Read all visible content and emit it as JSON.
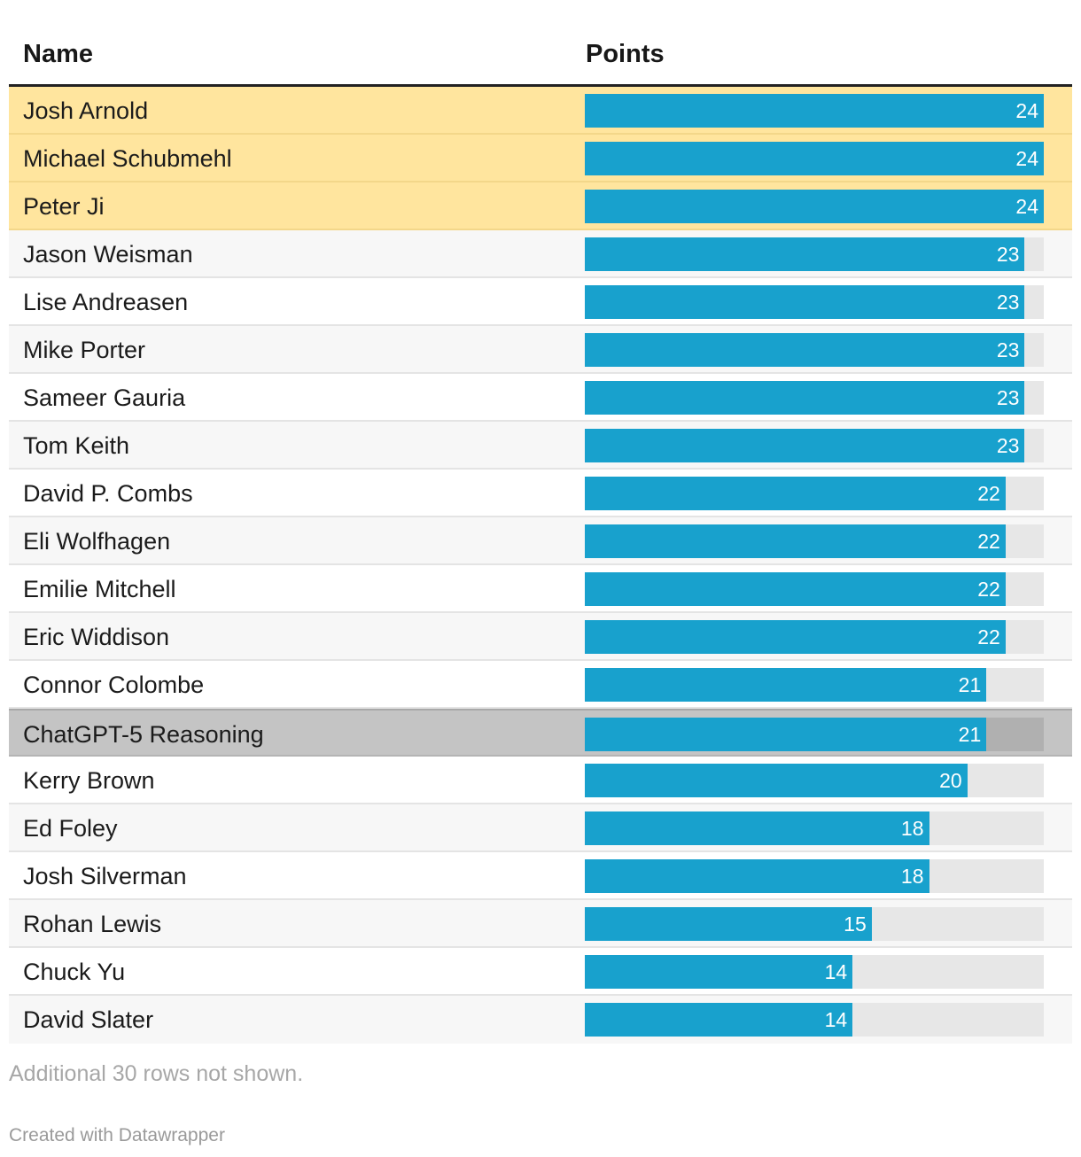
{
  "table": {
    "headers": {
      "name": "Name",
      "points": "Points"
    }
  },
  "chart_data": {
    "type": "bar",
    "orientation": "horizontal",
    "xlim": [
      0,
      24
    ],
    "categories": [
      "Josh Arnold",
      "Michael Schubmehl",
      "Peter Ji",
      "Jason Weisman",
      "Lise Andreasen",
      "Mike Porter",
      "Sameer Gauria",
      "Tom Keith",
      "David P. Combs",
      "Eli Wolfhagen",
      "Emilie Mitchell",
      "Eric Widdison",
      "Connor Colombe",
      "ChatGPT-5 Reasoning",
      "Kerry Brown",
      "Ed Foley",
      "Josh Silverman",
      "Rohan Lewis",
      "Chuck Yu",
      "David Slater"
    ],
    "values": [
      24,
      24,
      24,
      23,
      23,
      23,
      23,
      23,
      22,
      22,
      22,
      22,
      21,
      21,
      20,
      18,
      18,
      15,
      14,
      14
    ],
    "highlights": [
      "yellow",
      "yellow",
      "yellow",
      "",
      "",
      "",
      "",
      "",
      "",
      "",
      "",
      "",
      "",
      "gray",
      "",
      "",
      "",
      "",
      "",
      ""
    ],
    "colors": {
      "bar": "#18a1cd",
      "track": "#e7e7e7",
      "yellow_highlight": "#ffe59e",
      "gray_highlight": "#c4c4c4"
    }
  },
  "footer": {
    "note": "Additional 30 rows not shown.",
    "credit": "Created with Datawrapper"
  }
}
